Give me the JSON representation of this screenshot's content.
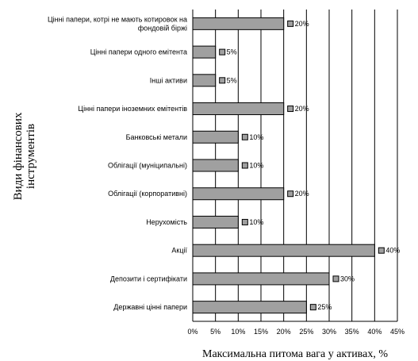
{
  "chart_data": {
    "type": "bar",
    "orientation": "horizontal",
    "categories": [
      [
        "Цінні папери, котрі не мають котировок на",
        "фондовій біржі"
      ],
      [
        "Цінні папери одного емітента"
      ],
      [
        "Інші активи"
      ],
      [
        "Цінні папери іноземних емітентів"
      ],
      [
        "Банковські метали"
      ],
      [
        "Облігації (муніципальні)"
      ],
      [
        "Облігації (корпоративні)"
      ],
      [
        "Нерухомість"
      ],
      [
        "Акції"
      ],
      [
        "Депозити і сертифікати"
      ],
      [
        "Державні цінні папери"
      ]
    ],
    "values": [
      20,
      5,
      5,
      20,
      10,
      10,
      20,
      10,
      40,
      30,
      25
    ],
    "data_labels": [
      "20%",
      "5%",
      "5%",
      "20%",
      "10%",
      "10%",
      "20%",
      "10%",
      "40%",
      "30%",
      "25%"
    ],
    "x_ticks": [
      "0%",
      "5%",
      "10%",
      "15%",
      "20%",
      "25%",
      "30%",
      "35%",
      "40%",
      "45%"
    ],
    "xlim": [
      0,
      45
    ],
    "grid": "vertical",
    "xlabel": "Максимальна питома вага у активах, %",
    "ylabel": [
      "Види фінансових",
      "інструментів"
    ],
    "bar_color": "#a0a0a0",
    "bar_edge_color": "#000000",
    "marker_color": "#a0a0a0"
  }
}
